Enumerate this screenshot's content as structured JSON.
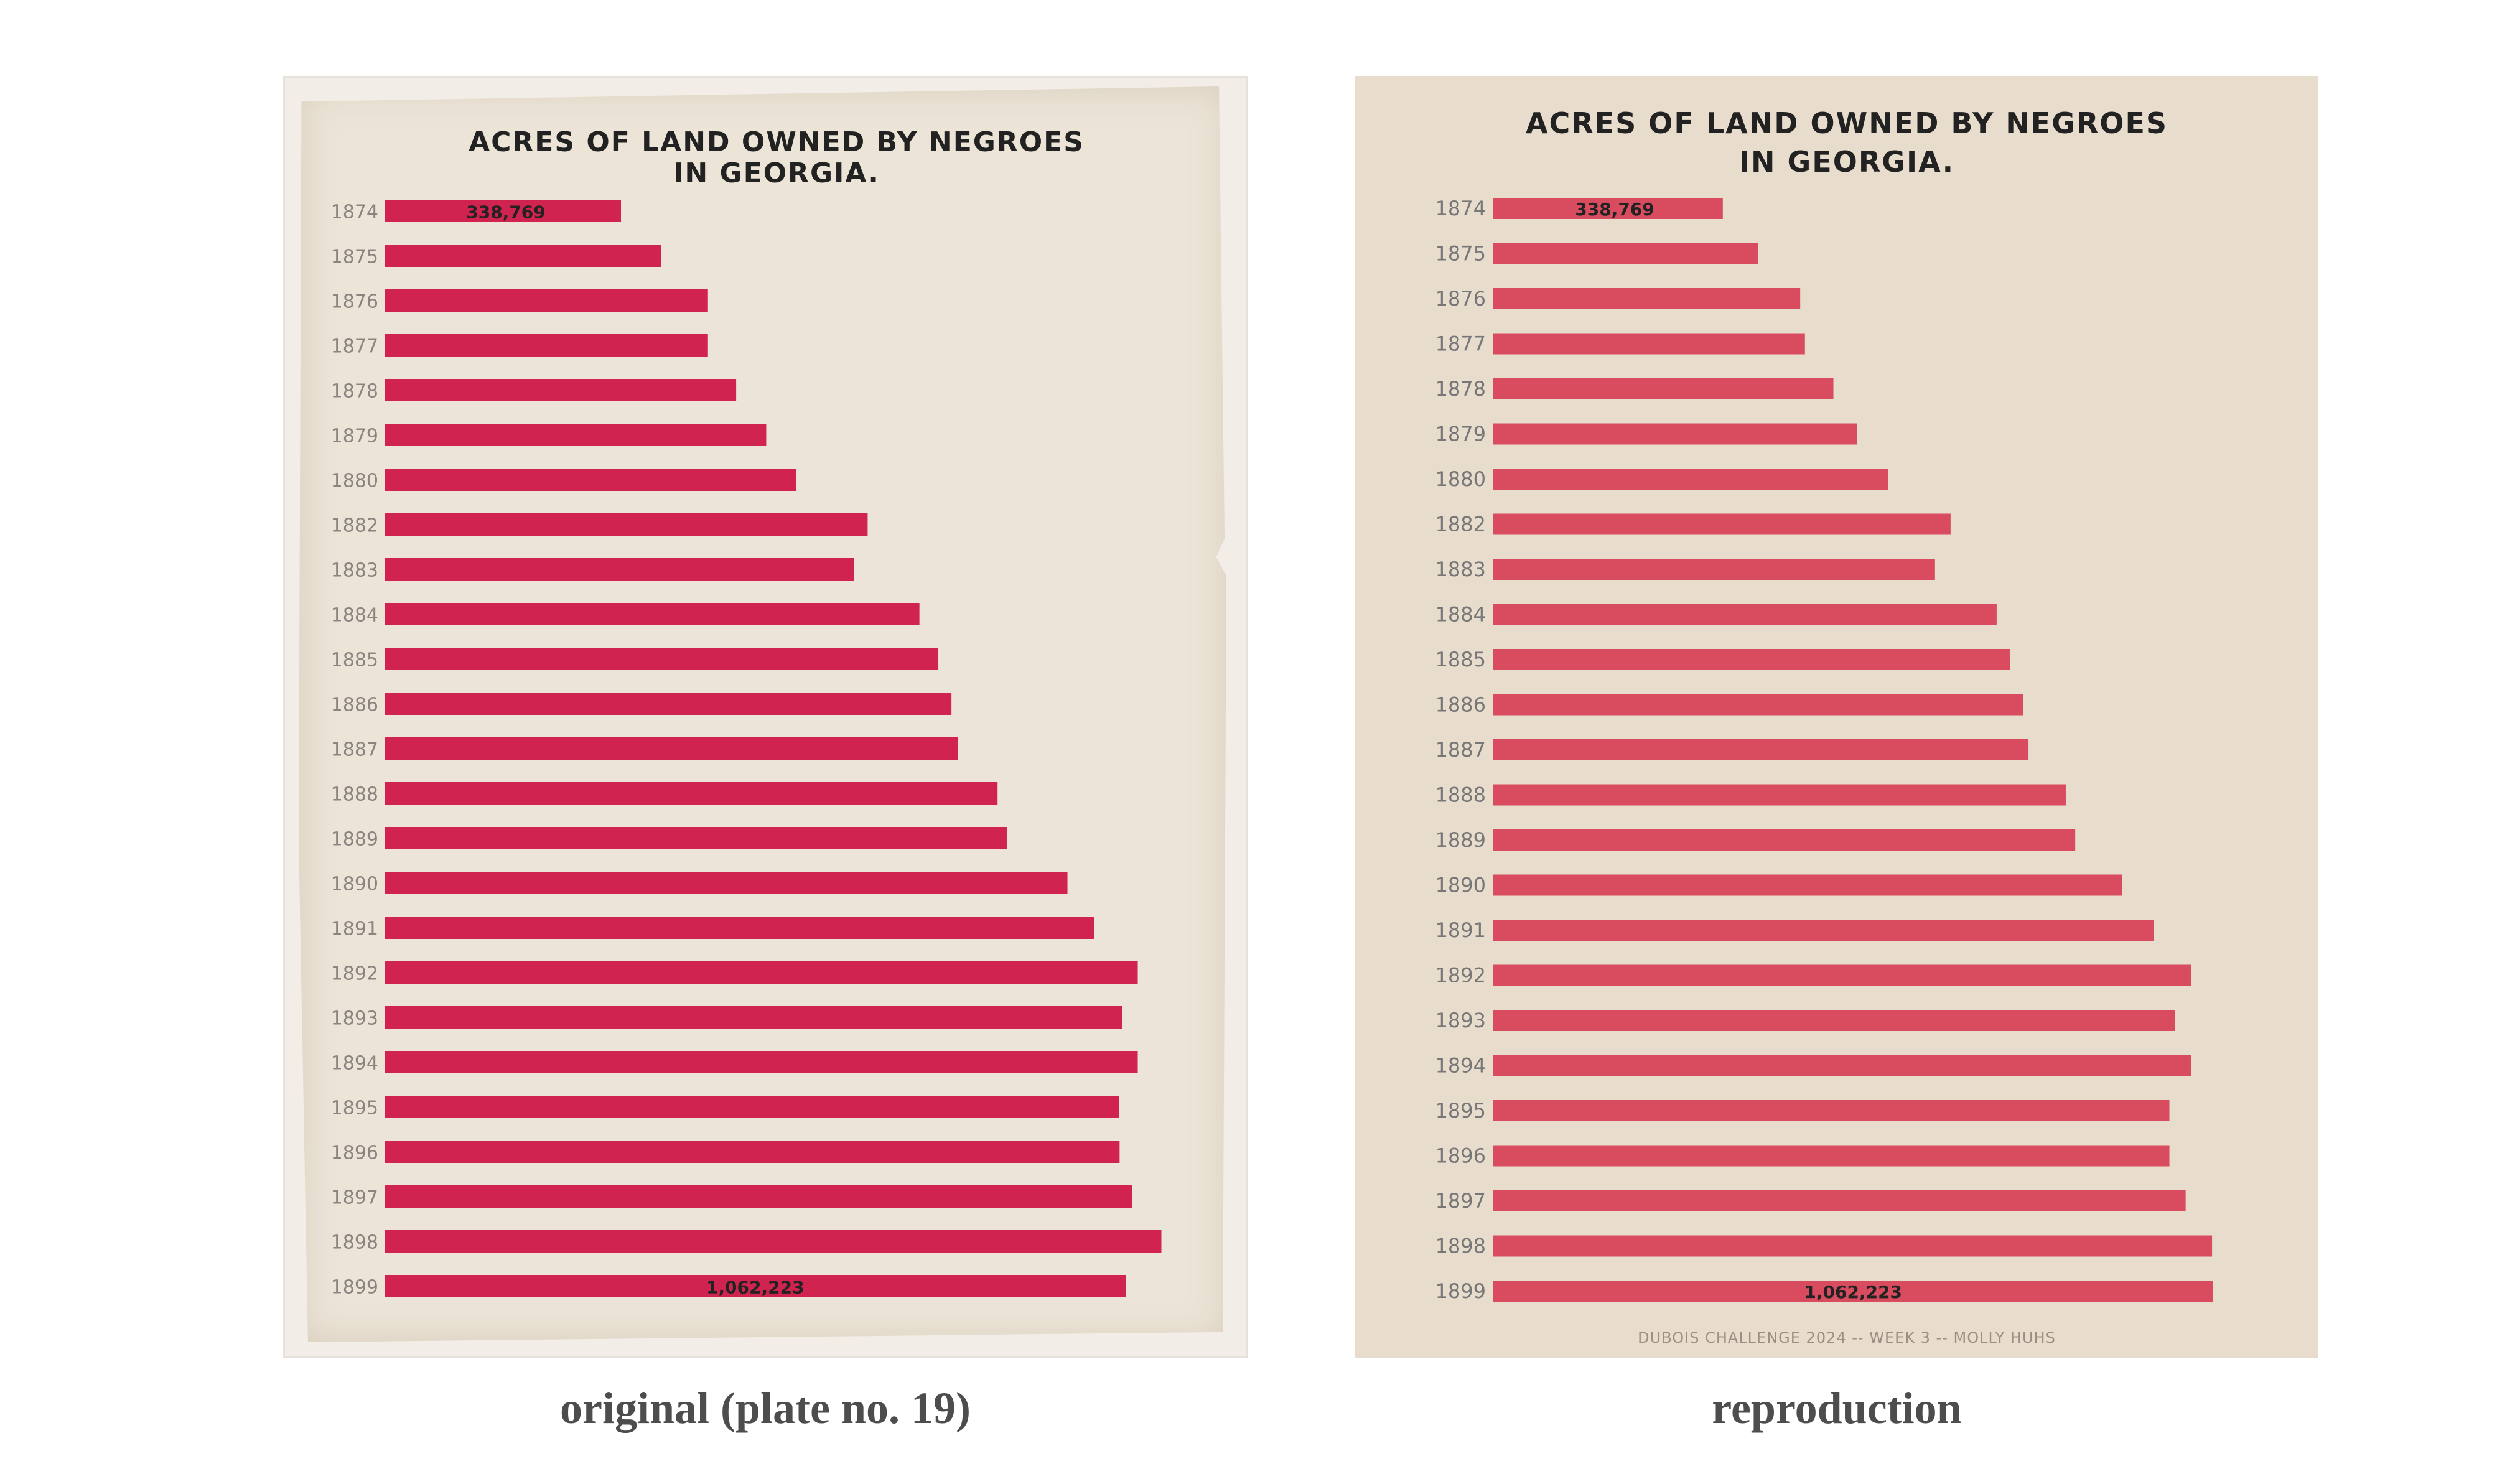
{
  "colors": {
    "original_bar": "#d0234f",
    "reproduction_bar": "#d94b5f",
    "original_background": "#ece4d7",
    "reproduction_background": "#e8dccd",
    "label_text": "#222222",
    "year_text_original": "#8a8580",
    "year_text_reproduction": "#777777"
  },
  "captions": {
    "original": "original (plate no. 19)",
    "reproduction": "reproduction"
  },
  "chart_data": [
    {
      "type": "bar",
      "orientation": "horizontal",
      "panel": "original",
      "title": "ACRES OF LAND OWNED BY NEGROES\nIN GEORGIA.",
      "categories": [
        "1874",
        "1875",
        "1876",
        "1877",
        "1878",
        "1879",
        "1880",
        "1882",
        "1883",
        "1884",
        "1885",
        "1886",
        "1887",
        "1888",
        "1889",
        "1890",
        "1891",
        "1892",
        "1893",
        "1894",
        "1895",
        "1896",
        "1897",
        "1898",
        "1899"
      ],
      "values": [
        338769,
        396658,
        463352,
        463352,
        503792,
        546838,
        589672,
        692150,
        672350,
        766340,
        793450,
        812250,
        821450,
        878290,
        891450,
        978420,
        1017000,
        1079150,
        1057150,
        1079150,
        1052150,
        1053150,
        1071150,
        1113000,
        1062223
      ],
      "data_labels": [
        {
          "category": "1874",
          "text": "338,769"
        },
        {
          "category": "1899",
          "text": "1,062,223"
        }
      ],
      "xlim": [
        0,
        1150000
      ],
      "xaxis_visible": false,
      "grid": false
    },
    {
      "type": "bar",
      "orientation": "horizontal",
      "panel": "reproduction",
      "title": "ACRES OF LAND OWNED BY NEGROES\nIN GEORGIA.",
      "categories": [
        "1874",
        "1875",
        "1876",
        "1877",
        "1878",
        "1879",
        "1880",
        "1882",
        "1883",
        "1884",
        "1885",
        "1886",
        "1887",
        "1888",
        "1889",
        "1890",
        "1891",
        "1892",
        "1893",
        "1894",
        "1895",
        "1896",
        "1897",
        "1898",
        "1899"
      ],
      "values": [
        338769,
        391000,
        453000,
        460000,
        502000,
        537000,
        583000,
        675000,
        652000,
        743000,
        763000,
        782000,
        790000,
        845000,
        859000,
        928000,
        975000,
        1030000,
        1006000,
        1030000,
        998000,
        998000,
        1022000,
        1061000,
        1062223
      ],
      "data_labels": [
        {
          "category": "1874",
          "text": "338,769"
        },
        {
          "category": "1899",
          "text": "1,062,223"
        }
      ],
      "footer": "DUBOIS CHALLENGE 2024 -- WEEK 3 -- MOLLY HUHS",
      "xlim": [
        0,
        1150000
      ],
      "xaxis_visible": false,
      "grid": false
    }
  ]
}
